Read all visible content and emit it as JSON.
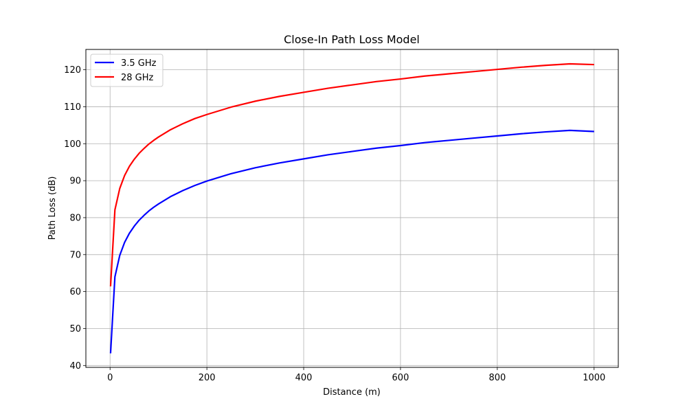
{
  "chart_data": {
    "type": "line",
    "title": "Close-In Path Loss Model",
    "xlabel": "Distance (m)",
    "ylabel": "Path Loss (dB)",
    "xlim": [
      -50,
      1050
    ],
    "ylim": [
      39.5,
      125.5
    ],
    "xticks": [
      0,
      200,
      400,
      600,
      800,
      1000
    ],
    "yticks": [
      40,
      50,
      60,
      70,
      80,
      90,
      100,
      110,
      120
    ],
    "grid": true,
    "legend_position": "top-left",
    "series": [
      {
        "name": "3.5 GHz",
        "color": "#0000ff",
        "x": [
          1,
          10,
          20,
          30,
          40,
          50,
          60,
          70,
          80,
          90,
          100,
          125,
          150,
          175,
          200,
          250,
          300,
          350,
          400,
          450,
          500,
          550,
          600,
          650,
          700,
          750,
          800,
          850,
          900,
          950,
          1000
        ],
        "y": [
          43.3,
          64.0,
          69.8,
          73.3,
          75.8,
          77.7,
          79.3,
          80.6,
          81.8,
          82.8,
          83.7,
          85.7,
          87.3,
          88.7,
          89.9,
          91.9,
          93.5,
          94.8,
          95.9,
          97.0,
          97.9,
          98.8,
          99.5,
          100.3,
          100.9,
          101.5,
          102.1,
          102.7,
          103.2,
          103.6,
          103.3
        ]
      },
      {
        "name": "28 GHz",
        "color": "#ff0000",
        "x": [
          1,
          10,
          20,
          30,
          40,
          50,
          60,
          70,
          80,
          90,
          100,
          125,
          150,
          175,
          200,
          250,
          300,
          350,
          400,
          450,
          500,
          550,
          600,
          650,
          700,
          750,
          800,
          850,
          900,
          950,
          1000
        ],
        "y": [
          61.4,
          82.1,
          87.9,
          91.4,
          93.9,
          95.8,
          97.4,
          98.7,
          99.9,
          100.9,
          101.8,
          103.8,
          105.4,
          106.8,
          107.9,
          109.9,
          111.5,
          112.8,
          113.9,
          115.0,
          115.9,
          116.8,
          117.5,
          118.3,
          118.9,
          119.5,
          120.1,
          120.7,
          121.2,
          121.6,
          121.4
        ]
      }
    ]
  }
}
